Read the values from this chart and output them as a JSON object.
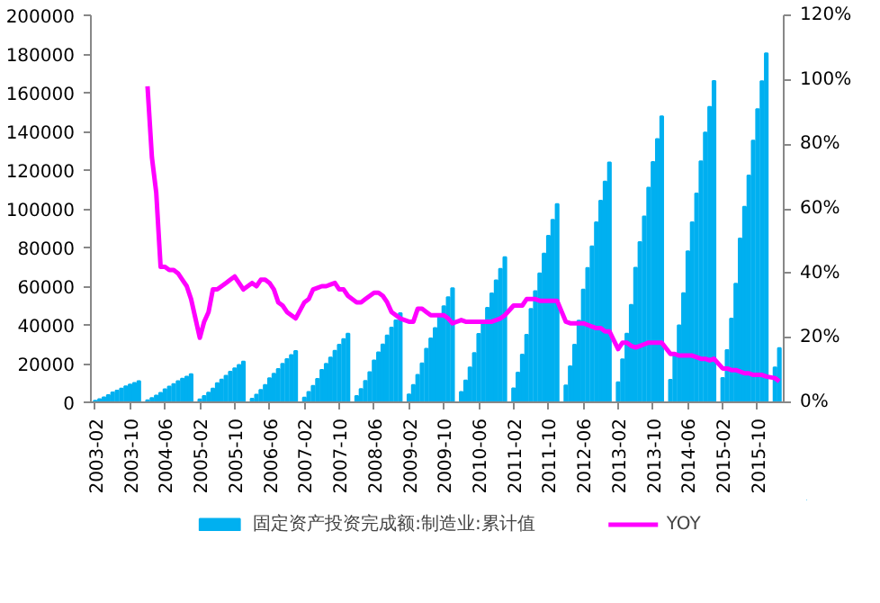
{
  "chart_data": {
    "type": "bar",
    "x": [
      "2003-02",
      "2003-03",
      "2003-04",
      "2003-05",
      "2003-06",
      "2003-07",
      "2003-08",
      "2003-09",
      "2003-10",
      "2003-11",
      "2003-12",
      "2004-02",
      "2004-03",
      "2004-04",
      "2004-05",
      "2004-06",
      "2004-07",
      "2004-08",
      "2004-09",
      "2004-10",
      "2004-11",
      "2004-12",
      "2005-02",
      "2005-03",
      "2005-04",
      "2005-05",
      "2005-06",
      "2005-07",
      "2005-08",
      "2005-09",
      "2005-10",
      "2005-11",
      "2005-12",
      "2006-02",
      "2006-03",
      "2006-04",
      "2006-05",
      "2006-06",
      "2006-07",
      "2006-08",
      "2006-09",
      "2006-10",
      "2006-11",
      "2006-12",
      "2007-02",
      "2007-03",
      "2007-04",
      "2007-05",
      "2007-06",
      "2007-07",
      "2007-08",
      "2007-09",
      "2007-10",
      "2007-11",
      "2007-12",
      "2008-02",
      "2008-03",
      "2008-04",
      "2008-05",
      "2008-06",
      "2008-07",
      "2008-08",
      "2008-09",
      "2008-10",
      "2008-11",
      "2008-12",
      "2009-02",
      "2009-03",
      "2009-04",
      "2009-05",
      "2009-06",
      "2009-07",
      "2009-08",
      "2009-09",
      "2009-10",
      "2009-11",
      "2009-12",
      "2010-02",
      "2010-03",
      "2010-04",
      "2010-05",
      "2010-06",
      "2010-07",
      "2010-08",
      "2010-09",
      "2010-10",
      "2010-11",
      "2010-12",
      "2011-02",
      "2011-03",
      "2011-04",
      "2011-05",
      "2011-06",
      "2011-07",
      "2011-08",
      "2011-09",
      "2011-10",
      "2011-11",
      "2011-12",
      "2012-02",
      "2012-03",
      "2012-04",
      "2012-05",
      "2012-06",
      "2012-07",
      "2012-08",
      "2012-09",
      "2012-10",
      "2012-11",
      "2012-12",
      "2013-02",
      "2013-03",
      "2013-04",
      "2013-05",
      "2013-06",
      "2013-07",
      "2013-08",
      "2013-09",
      "2013-10",
      "2013-11",
      "2013-12",
      "2014-02",
      "2014-03",
      "2014-04",
      "2014-05",
      "2014-06",
      "2014-07",
      "2014-08",
      "2014-09",
      "2014-10",
      "2014-11",
      "2014-12",
      "2015-02",
      "2015-03",
      "2015-04",
      "2015-05",
      "2015-06",
      "2015-07",
      "2015-08",
      "2015-09",
      "2015-10",
      "2015-11",
      "2015-12",
      "2016-02",
      "2016-03"
    ],
    "series": [
      {
        "name": "固定资产投资完成额:制造业:累计值",
        "color": "#00b0f0",
        "values": [
          800,
          1600,
          2600,
          3700,
          5100,
          6100,
          7100,
          8200,
          9200,
          10000,
          10900,
          1000,
          2200,
          3500,
          4900,
          6800,
          8100,
          9400,
          10900,
          12200,
          13300,
          14500,
          1500,
          3200,
          5000,
          7100,
          9900,
          11800,
          13700,
          15800,
          17600,
          19300,
          21000,
          1900,
          4000,
          6400,
          9000,
          12500,
          14800,
          17200,
          19900,
          22300,
          24400,
          26500,
          2500,
          5300,
          8500,
          12100,
          16700,
          19900,
          23100,
          26600,
          29800,
          32700,
          35500,
          3200,
          6900,
          11000,
          15600,
          21600,
          25800,
          29900,
          34500,
          38600,
          42300,
          46000,
          4100,
          8900,
          14200,
          20100,
          27700,
          33000,
          38400,
          44300,
          49600,
          54300,
          59000,
          5300,
          11300,
          18000,
          25500,
          35300,
          42000,
          48800,
          56300,
          63000,
          69000,
          75000,
          7200,
          15400,
          24600,
          34900,
          48200,
          57400,
          66600,
          76900,
          86100,
          94300,
          102500,
          8700,
          18600,
          29800,
          42200,
          58300,
          69400,
          80600,
          93000,
          104200,
          114100,
          124000,
          10300,
          22200,
          35500,
          50300,
          69500,
          82800,
          96100,
          110900,
          124200,
          136000,
          147800,
          11600,
          24900,
          39800,
          56400,
          78000,
          93000,
          107900,
          124500,
          139400,
          152700,
          166000,
          12600,
          27000,
          43300,
          61300,
          84700,
          101000,
          117200,
          135200,
          151500,
          165900,
          180300,
          18000,
          28000
        ]
      },
      {
        "name": "YOY",
        "type": "line",
        "axis": "y2",
        "color": "#ff00ff",
        "values": [
          null,
          null,
          null,
          null,
          null,
          null,
          null,
          null,
          null,
          null,
          null,
          98,
          76,
          65,
          42,
          42,
          41,
          41,
          40,
          38,
          36,
          32,
          20,
          25,
          28,
          35,
          35,
          36,
          37,
          38,
          39,
          37,
          35,
          37,
          36,
          38,
          38,
          37,
          35,
          31,
          30,
          28,
          27,
          26,
          31,
          32,
          35,
          35.5,
          36,
          36,
          36.5,
          37,
          35,
          35,
          33,
          31,
          31,
          32,
          33,
          34,
          34,
          33,
          31,
          28,
          27,
          26,
          25,
          25,
          29,
          29,
          28,
          27,
          27,
          27,
          27,
          26,
          24.5,
          25.5,
          25,
          25,
          25,
          25,
          25,
          25,
          25,
          25.5,
          26,
          27,
          30,
          30,
          30,
          32,
          32,
          32,
          31.5,
          31.5,
          31.5,
          31.5,
          31.5,
          25,
          24.5,
          24.5,
          24.5,
          24.5,
          24,
          23.5,
          23,
          23,
          22,
          22,
          16.5,
          18.5,
          18.5,
          17.5,
          17,
          17.5,
          18,
          18.5,
          18.5,
          18.5,
          18.5,
          15,
          15,
          14.5,
          14.5,
          14.5,
          14.5,
          14,
          13.5,
          13.5,
          13,
          13.5,
          10.5,
          10.5,
          10,
          10,
          9.5,
          9,
          9,
          8.5,
          8.5,
          8.5,
          8,
          7.5,
          6.5
        ]
      }
    ],
    "xlim": [
      "2003-01",
      "2016-04"
    ],
    "xticks": [
      "2003-02",
      "2003-10",
      "2004-06",
      "2005-02",
      "2005-10",
      "2006-06",
      "2007-02",
      "2007-10",
      "2008-06",
      "2009-02",
      "2009-10",
      "2010-06",
      "2011-02",
      "2011-10",
      "2012-06",
      "2013-02",
      "2013-10",
      "2014-06",
      "2015-02",
      "2015-10"
    ],
    "ylim": [
      0,
      200000
    ],
    "yticks": [
      0,
      20000,
      40000,
      60000,
      80000,
      100000,
      120000,
      140000,
      160000,
      180000,
      200000
    ],
    "y2lim": [
      0,
      120
    ],
    "y2ticks": [
      {
        "value": 0,
        "label": "0%"
      },
      {
        "value": 20,
        "label": "20%"
      },
      {
        "value": 40,
        "label": "40%"
      },
      {
        "value": 60,
        "label": "60%"
      },
      {
        "value": 80,
        "label": "80%"
      },
      {
        "value": 100,
        "label": "100%"
      },
      {
        "value": 120,
        "label": "120%"
      }
    ],
    "grid": false,
    "legend": "bottom"
  }
}
